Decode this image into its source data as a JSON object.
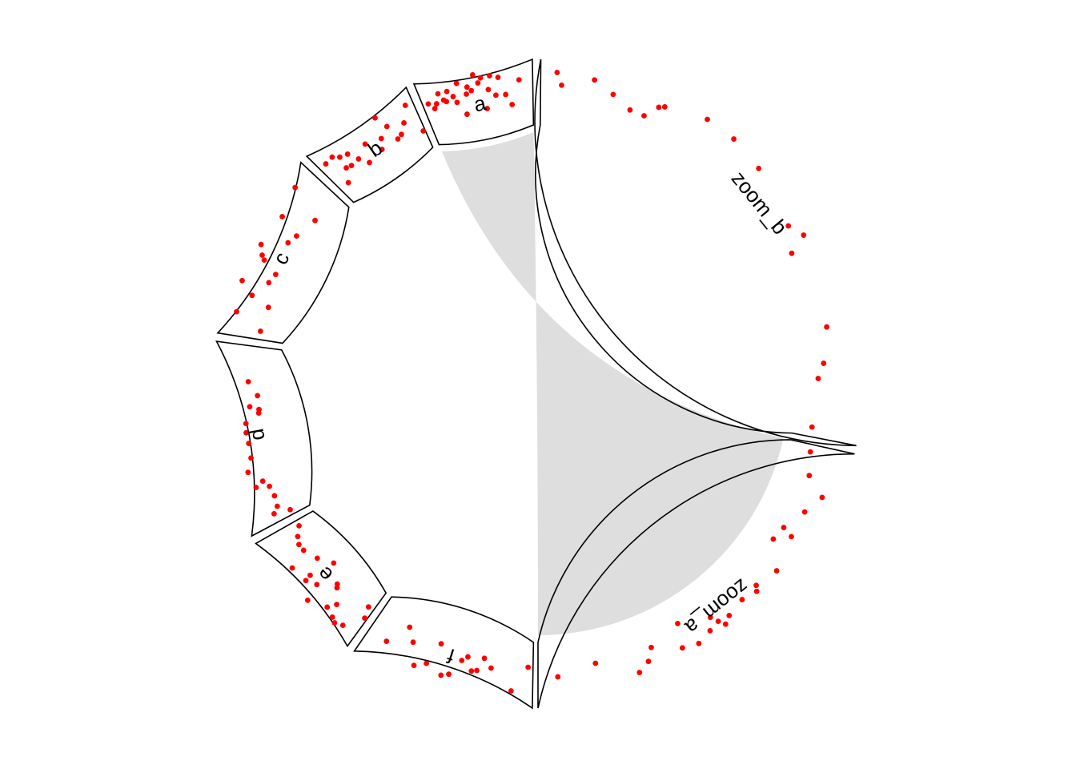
{
  "chart_data": {
    "type": "scatter",
    "layout": "circular",
    "point_color": "#ff0000",
    "link_color": "#dedede",
    "sectors": [
      {
        "name": "a",
        "label": "a",
        "start_deg": 91.0,
        "end_deg": 112.5,
        "points": [
          [
            0.05,
            0.66
          ],
          [
            0.09,
            0.54
          ],
          [
            0.12,
            0.61
          ],
          [
            0.16,
            0.77
          ],
          [
            0.19,
            0.63
          ],
          [
            0.21,
            0.59
          ],
          [
            0.24,
            0.76
          ],
          [
            0.28,
            0.64
          ],
          [
            0.3,
            0.52
          ],
          [
            0.34,
            0.85
          ],
          [
            0.36,
            0.27
          ],
          [
            0.4,
            0.62
          ],
          [
            0.42,
            0.74
          ],
          [
            0.45,
            0.66
          ],
          [
            0.49,
            0.93
          ],
          [
            0.52,
            0.77
          ],
          [
            0.55,
            0.85
          ],
          [
            0.56,
            0.29
          ],
          [
            0.6,
            0.62
          ],
          [
            0.63,
            0.86
          ],
          [
            0.66,
            0.5
          ],
          [
            0.7,
            0.81
          ],
          [
            0.75,
            0.49
          ],
          [
            0.8,
            0.3
          ],
          [
            0.88,
            0.73
          ]
        ]
      },
      {
        "name": "b",
        "label": "b",
        "start_deg": 114.0,
        "end_deg": 135.5,
        "points": [
          [
            0.07,
            0.75
          ],
          [
            0.1,
            0.23
          ],
          [
            0.15,
            0.76
          ],
          [
            0.18,
            0.45
          ],
          [
            0.2,
            0.67
          ],
          [
            0.23,
            0.42
          ],
          [
            0.27,
            0.62
          ],
          [
            0.32,
            0.43
          ],
          [
            0.38,
            0.26
          ],
          [
            0.45,
            0.57
          ],
          [
            0.55,
            0.32
          ],
          [
            0.6,
            0.49
          ],
          [
            0.65,
            0.86
          ],
          [
            0.7,
            0.62
          ],
          [
            0.73,
            0.33
          ],
          [
            0.78,
            0.37
          ],
          [
            0.85,
            0.53
          ],
          [
            0.93,
            0.8
          ],
          [
            0.98,
            0.25
          ]
        ]
      },
      {
        "name": "c",
        "label": "c",
        "start_deg": 137.0,
        "end_deg": 171.0,
        "points": [
          [
            0.05,
            0.34
          ],
          [
            0.13,
            0.83
          ],
          [
            0.2,
            0.3
          ],
          [
            0.24,
            0.64
          ],
          [
            0.3,
            0.89
          ],
          [
            0.34,
            0.43
          ],
          [
            0.4,
            0.37
          ],
          [
            0.45,
            0.66
          ],
          [
            0.47,
            0.73
          ],
          [
            0.52,
            0.83
          ],
          [
            0.6,
            0.42
          ],
          [
            0.66,
            0.35
          ],
          [
            0.71,
            0.75
          ],
          [
            0.8,
            0.23
          ],
          [
            0.88,
            0.87
          ]
        ]
      },
      {
        "name": "d",
        "label": "d",
        "start_deg": 172.5,
        "end_deg": 208.0,
        "points": [
          [
            0.03,
            0.26
          ],
          [
            0.05,
            0.55
          ],
          [
            0.08,
            0.44
          ],
          [
            0.14,
            0.41
          ],
          [
            0.2,
            0.43
          ],
          [
            0.22,
            0.66
          ],
          [
            0.24,
            0.51
          ],
          [
            0.31,
            0.71
          ],
          [
            0.38,
            0.59
          ],
          [
            0.46,
            0.57
          ],
          [
            0.52,
            0.58
          ],
          [
            0.57,
            0.56
          ],
          [
            0.62,
            0.31
          ],
          [
            0.64,
            0.3
          ],
          [
            0.66,
            0.46
          ],
          [
            0.72,
            0.31
          ],
          [
            0.8,
            0.47
          ]
        ]
      },
      {
        "name": "e",
        "label": "e",
        "start_deg": 209.5,
        "end_deg": 234.0,
        "points": [
          [
            0.02,
            0.5
          ],
          [
            0.05,
            0.3
          ],
          [
            0.12,
            0.84
          ],
          [
            0.18,
            0.9
          ],
          [
            0.22,
            0.85
          ],
          [
            0.26,
            0.63
          ],
          [
            0.3,
            0.78
          ],
          [
            0.35,
            0.41
          ],
          [
            0.37,
            0.36
          ],
          [
            0.44,
            0.94
          ],
          [
            0.48,
            0.63
          ],
          [
            0.52,
            0.15
          ],
          [
            0.56,
            0.73
          ],
          [
            0.57,
            0.61
          ],
          [
            0.64,
            0.32
          ],
          [
            0.7,
            0.78
          ],
          [
            0.76,
            0.43
          ],
          [
            0.82,
            0.44
          ],
          [
            0.88,
            0.38
          ],
          [
            0.95,
            0.26
          ]
        ]
      },
      {
        "name": "f",
        "label": "f",
        "start_deg": 235.5,
        "end_deg": 269.0,
        "points": [
          [
            0.03,
            0.36
          ],
          [
            0.12,
            0.8
          ],
          [
            0.25,
            0.44
          ],
          [
            0.3,
            0.29
          ],
          [
            0.33,
            0.53
          ],
          [
            0.36,
            0.56
          ],
          [
            0.4,
            0.33
          ],
          [
            0.43,
            0.42
          ],
          [
            0.48,
            0.72
          ],
          [
            0.52,
            0.78
          ],
          [
            0.58,
            0.25
          ],
          [
            0.62,
            0.67
          ],
          [
            0.68,
            0.79
          ],
          [
            0.74,
            0.42
          ],
          [
            0.8,
            0.21
          ],
          [
            0.88,
            0.63
          ]
        ]
      },
      {
        "name": "zoom_a",
        "label": "zoom_a",
        "start_deg": 270.0,
        "end_deg": 347.5,
        "points": [
          [
            0.02,
            0.31
          ],
          [
            0.08,
            0.41
          ],
          [
            0.12,
            0.76
          ],
          [
            0.17,
            0.58
          ],
          [
            0.23,
            0.38
          ],
          [
            0.24,
            0.58
          ],
          [
            0.27,
            0.33
          ],
          [
            0.33,
            0.71
          ],
          [
            0.39,
            0.6
          ],
          [
            0.4,
            0.68
          ],
          [
            0.44,
            0.6
          ],
          [
            0.49,
            0.66
          ],
          [
            0.51,
            0.74
          ],
          [
            0.52,
            0.62
          ],
          [
            0.53,
            0.48
          ],
          [
            0.55,
            0.67
          ],
          [
            0.59,
            0.75
          ],
          [
            0.61,
            0.25
          ],
          [
            0.63,
            0.67
          ],
          [
            0.7,
            0.42
          ],
          [
            0.72,
            0.63
          ],
          [
            0.75,
            0.76
          ],
          [
            0.85,
            0.39
          ],
          [
            0.95,
            0.54
          ]
        ]
      },
      {
        "name": "zoom_b",
        "label": "zoom_b",
        "start_deg": 349.0,
        "end_deg": 449.5,
        "points": [
          [
            0.03,
            0.86
          ],
          [
            0.04,
            0.64
          ],
          [
            0.1,
            0.81
          ],
          [
            0.14,
            0.63
          ],
          [
            0.18,
            0.45
          ],
          [
            0.21,
            0.44
          ],
          [
            0.23,
            0.68
          ],
          [
            0.24,
            0.73
          ],
          [
            0.32,
            0.9
          ],
          [
            0.38,
            0.89
          ],
          [
            0.45,
            0.8
          ],
          [
            0.57,
            0.58
          ],
          [
            0.6,
            0.73
          ],
          [
            0.62,
            0.39
          ],
          [
            0.78,
            0.55
          ],
          [
            0.85,
            0.41
          ],
          [
            0.88,
            0.3
          ],
          [
            0.98,
            0.25
          ]
        ]
      }
    ],
    "links": [
      {
        "from": "a",
        "from_range": [
          0.0,
          1.0
        ],
        "to": "zoom_a",
        "to_range": [
          0.0,
          1.0
        ]
      }
    ]
  }
}
